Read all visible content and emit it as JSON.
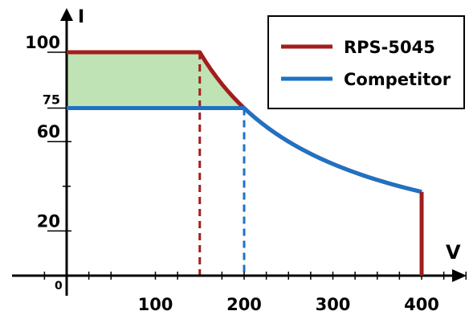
{
  "chart_data": {
    "type": "line",
    "xlabel": "V",
    "ylabel": "I",
    "origin_label": "0",
    "xlim": [
      0,
      450
    ],
    "ylim": [
      0,
      125
    ],
    "x_ticks": [
      {
        "value": 100,
        "label": "100"
      },
      {
        "value": 200,
        "label": "200"
      },
      {
        "value": 300,
        "label": "300"
      },
      {
        "value": 400,
        "label": "400"
      }
    ],
    "x_minor_ticks": [
      -25,
      25,
      50,
      125,
      175,
      225,
      250,
      275,
      325,
      350,
      375,
      425,
      450
    ],
    "y_ticks": [
      {
        "value": 100,
        "label": "100"
      },
      {
        "value": 75,
        "label": "75"
      },
      {
        "value": 60,
        "label": "60"
      },
      {
        "value": 20,
        "label": "20"
      }
    ],
    "y_minor_ticks": [
      40
    ],
    "series": [
      {
        "name": "RPS-5045",
        "color": "#a31d1d",
        "power_limit": 15000,
        "current_limit": 100,
        "voltage_max": 400,
        "knee_voltage": 150
      },
      {
        "name": "Competitor",
        "color": "#1f72c4",
        "power_limit": 15000,
        "current_limit": 75,
        "voltage_max": 400,
        "knee_voltage": 200
      }
    ],
    "fill_color": "#bfe3b4",
    "legend_position": "top-right"
  }
}
